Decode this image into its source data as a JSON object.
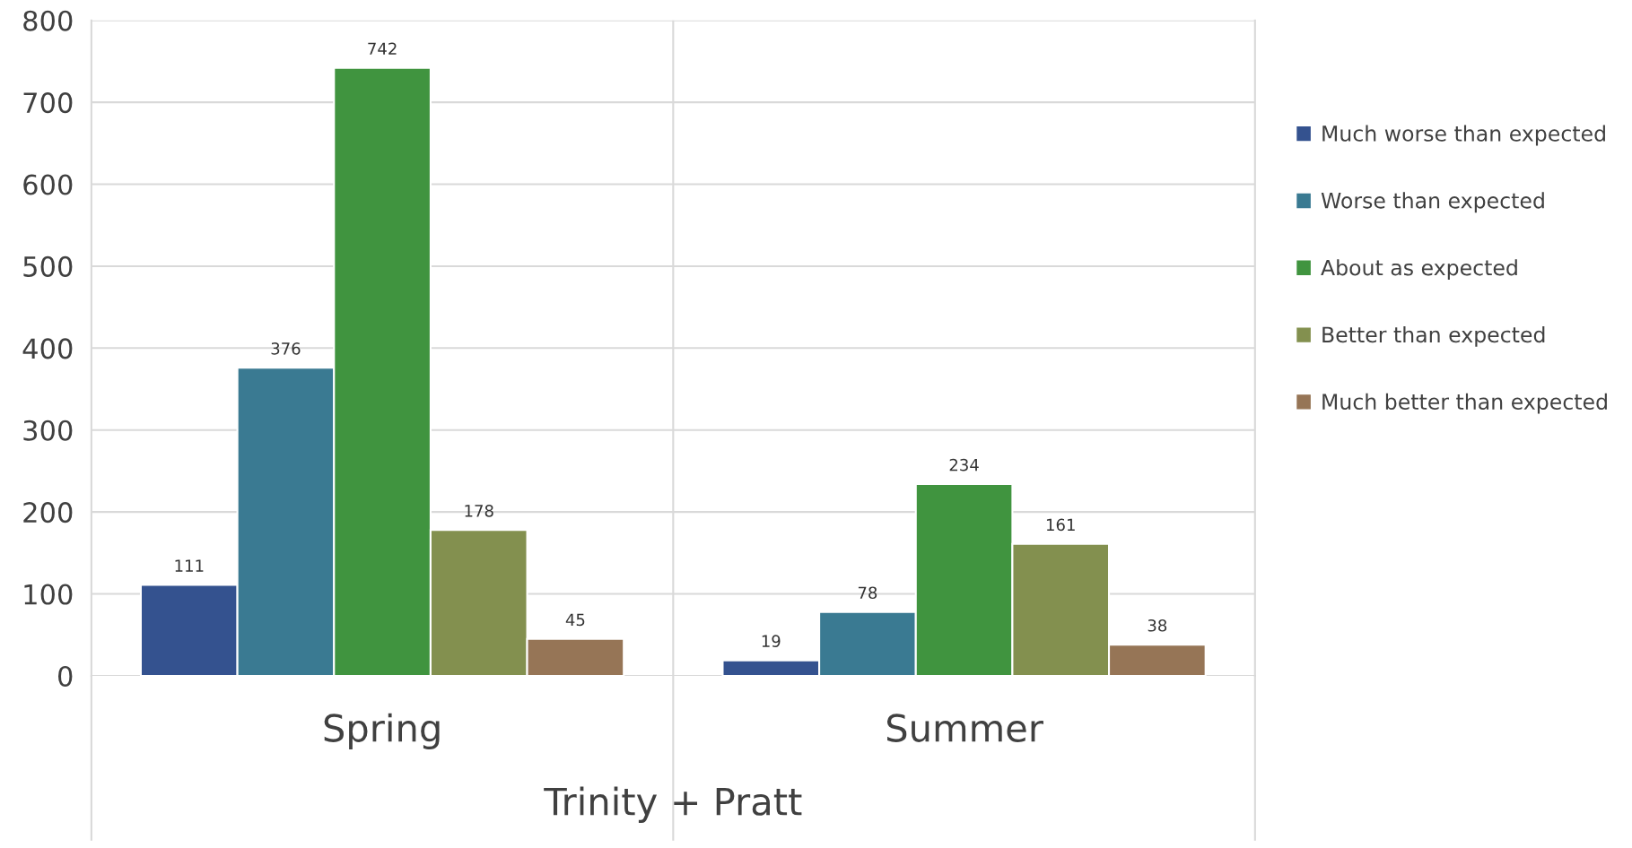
{
  "chart_data": {
    "type": "bar",
    "xlabel": "Trinity + Pratt",
    "categories": [
      "Spring",
      "Summer"
    ],
    "series": [
      {
        "name": "Much worse than expected",
        "color": "#34528f",
        "values": [
          111,
          19
        ]
      },
      {
        "name": "Worse than expected",
        "color": "#3a7a92",
        "values": [
          376,
          78
        ]
      },
      {
        "name": "About as expected",
        "color": "#40943f",
        "values": [
          742,
          234
        ]
      },
      {
        "name": "Better than expected",
        "color": "#83904f",
        "values": [
          178,
          161
        ]
      },
      {
        "name": "Much better than expected",
        "color": "#967556",
        "values": [
          45,
          38
        ]
      }
    ],
    "ylim": [
      0,
      800
    ],
    "yticks": [
      0,
      100,
      200,
      300,
      400,
      500,
      600,
      700,
      800
    ],
    "grid": true,
    "legend": "right",
    "data_labels": true
  }
}
